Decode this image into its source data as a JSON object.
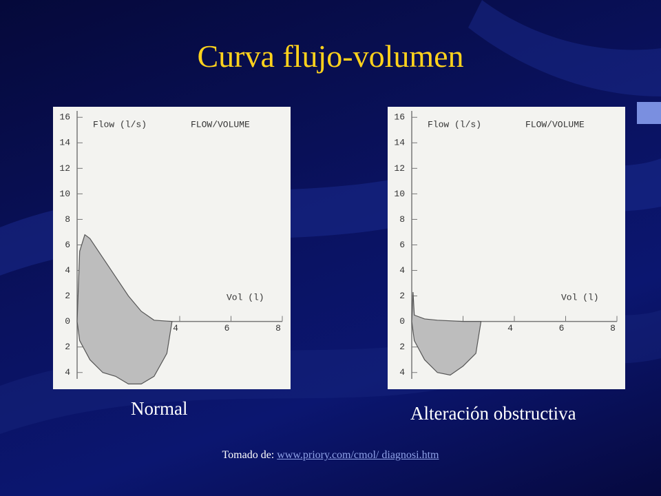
{
  "title": "Curva flujo-volumen",
  "captions": [
    "Normal",
    "Alteración obstructiva"
  ],
  "source": {
    "prefix": "Tomado de:",
    "link": "www.priory.com/cmol/ diagnosi.htm"
  },
  "chart_data": [
    {
      "type": "area",
      "y_label": "Flow (l/s)",
      "chart_label": "FLOW/VOLUME",
      "x_label": "Vol (l)",
      "color": "#bdbdbd",
      "x": [
        0,
        0.1,
        0.3,
        0.5,
        1,
        1.5,
        2,
        2.5,
        3,
        3.7,
        3.5,
        3,
        2.5,
        2,
        1.5,
        1,
        0.5,
        0.1,
        0
      ],
      "values": [
        0,
        5.5,
        6.8,
        6.5,
        5,
        3.5,
        2,
        0.8,
        0.1,
        0,
        -2.5,
        -4.3,
        -4.9,
        -4.9,
        -4.3,
        -4,
        -3,
        -1.5,
        0
      ],
      "xlim": [
        0,
        8
      ],
      "xticks": [
        2,
        4,
        6,
        8
      ],
      "ylim": [
        -4.5,
        16.5
      ],
      "yticks": [
        16,
        14,
        12,
        10,
        8,
        6,
        4,
        2,
        0,
        {
          "value": -2,
          "label": "2"
        },
        {
          "value": -4,
          "label": "4"
        }
      ]
    },
    {
      "type": "area",
      "y_label": "Flow (l/s)",
      "chart_label": "FLOW/VOLUME",
      "x_label": "Vol (l)",
      "color": "#bdbdbd",
      "x": [
        0,
        0.05,
        0.1,
        0.5,
        1,
        2,
        2.7,
        2.5,
        2,
        1.5,
        1,
        0.5,
        0.1,
        0
      ],
      "values": [
        0,
        2.3,
        0.5,
        0.2,
        0.1,
        0,
        0,
        -2.5,
        -3.5,
        -4.2,
        -4,
        -3,
        -1.5,
        0
      ],
      "xlim": [
        0,
        8
      ],
      "xticks": [
        2,
        4,
        6,
        8
      ],
      "ylim": [
        -4.5,
        16.5
      ],
      "yticks": [
        16,
        14,
        12,
        10,
        8,
        6,
        4,
        2,
        0,
        {
          "value": -2,
          "label": "2"
        },
        {
          "value": -4,
          "label": "4"
        }
      ]
    }
  ]
}
